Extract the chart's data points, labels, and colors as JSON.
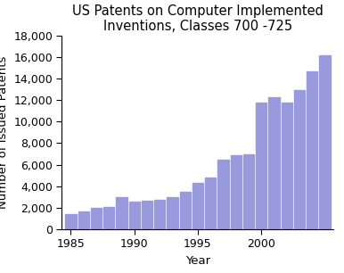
{
  "title": "US Patents on Computer Implemented\nInventions, Classes 700 -725",
  "xlabel": "Year",
  "ylabel": "Number of Issued Patents",
  "years": [
    1985,
    1986,
    1987,
    1988,
    1989,
    1990,
    1991,
    1992,
    1993,
    1994,
    1995,
    1996,
    1997,
    1998,
    1999,
    2000,
    2001,
    2002,
    2003,
    2004,
    2005
  ],
  "values": [
    1400,
    1650,
    2000,
    2100,
    3000,
    2600,
    2650,
    2700,
    3000,
    3500,
    4300,
    4800,
    6500,
    6900,
    7000,
    11800,
    12300,
    11800,
    12900,
    14700,
    16200
  ],
  "bar_color": "#9999dd",
  "ylim": [
    0,
    18000
  ],
  "ytick_step": 2000,
  "xticks": [
    1985,
    1990,
    1995,
    2000
  ],
  "background_color": "#ffffff",
  "title_fontsize": 10.5,
  "axis_label_fontsize": 9.5,
  "tick_fontsize": 9
}
